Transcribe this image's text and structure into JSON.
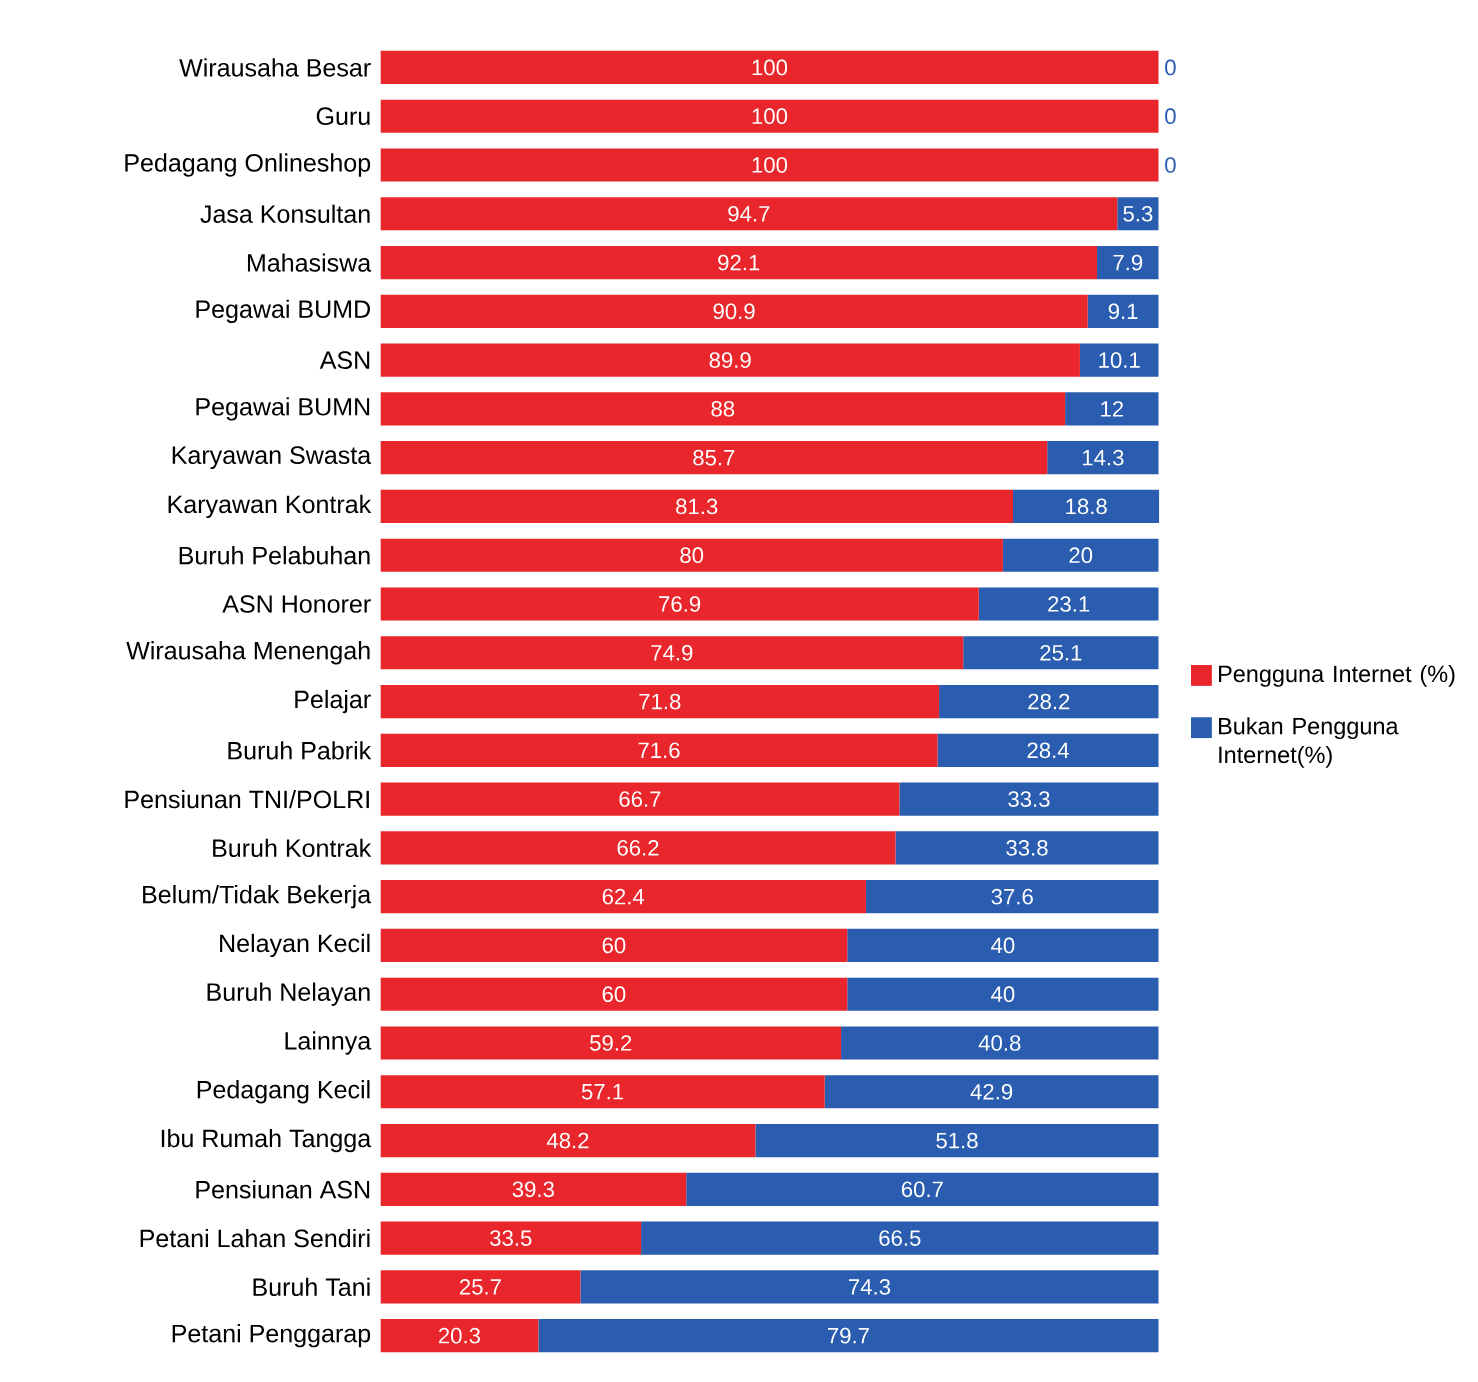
{
  "chart_data": {
    "type": "bar",
    "orientation": "horizontal",
    "stacked": true,
    "data_labels": true,
    "legend": "right",
    "categories": [
      "Wirausaha Besar",
      "Guru",
      "Pedagang Onlineshop",
      "Jasa Konsultan",
      "Mahasiswa",
      "Pegawai BUMD",
      "ASN",
      "Pegawai BUMN",
      "Karyawan Swasta",
      "Karyawan Kontrak",
      "Buruh Pelabuhan",
      "ASN Honorer",
      "Wirausaha Menengah",
      "Pelajar",
      "Buruh Pabrik",
      "Pensiunan TNI/POLRI",
      "Buruh Kontrak",
      "Belum/Tidak Bekerja",
      "Nelayan Kecil",
      "Buruh Nelayan",
      "Lainnya",
      "Pedagang Kecil",
      "Ibu Rumah Tangga",
      "Pensiunan ASN",
      "Petani Lahan Sendiri",
      "Buruh Tani",
      "Petani Penggarap"
    ],
    "series": [
      {
        "name": "Pengguna Internet (%)",
        "color": "#e8262b",
        "values": [
          100,
          100,
          100,
          94.7,
          92.1,
          90.9,
          89.9,
          88,
          85.7,
          81.3,
          80,
          76.9,
          74.9,
          71.8,
          71.6,
          66.7,
          66.2,
          62.4,
          60,
          60,
          59.2,
          57.1,
          48.2,
          39.3,
          33.5,
          25.7,
          20.3
        ]
      },
      {
        "name": "Bukan Pengguna Internet(%)",
        "color": "#2a5db0",
        "values": [
          0,
          0,
          0,
          5.3,
          7.9,
          9.1,
          10.1,
          12,
          14.3,
          18.8,
          20,
          23.1,
          25.1,
          28.2,
          28.4,
          33.3,
          33.8,
          37.6,
          40,
          40,
          40.8,
          42.9,
          51.8,
          60.7,
          66.5,
          74.3,
          79.7
        ]
      }
    ]
  }
}
